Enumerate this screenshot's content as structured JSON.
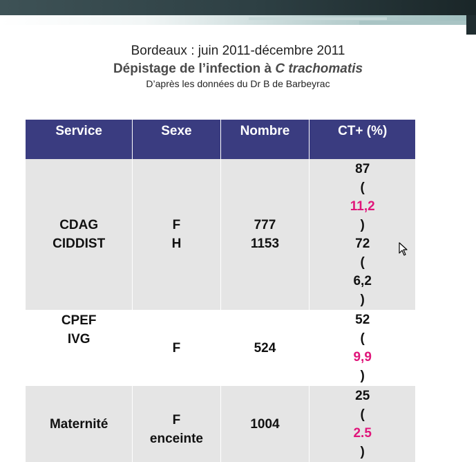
{
  "title": {
    "line1": "Bordeaux : juin 2011-décembre 2011",
    "line2_prefix": "Dépistage de l’infection à ",
    "line2_italic": "C trachomatis",
    "line3": "D’après les données du Dr B de Barbeyrac"
  },
  "table": {
    "headers": [
      "Service",
      "Sexe",
      "Nombre",
      "CT+ (%)"
    ],
    "rows": [
      {
        "service": [
          "CDAG",
          "CIDDIST"
        ],
        "sexe": [
          "F",
          "H"
        ],
        "nombre": [
          "777",
          "1153"
        ],
        "ct": [
          {
            "count": "87",
            "pct": "11,2",
            "highlight": true
          },
          {
            "count": "72",
            "pct": "6,2",
            "highlight": false
          }
        ]
      },
      {
        "service": [
          "CPEF",
          "IVG"
        ],
        "sexe": [
          "F"
        ],
        "nombre": [
          "524"
        ],
        "ct": [
          {
            "count": "52",
            "pct": "9,9",
            "highlight": true
          }
        ]
      },
      {
        "service": [
          "Maternité"
        ],
        "sexe": [
          "F",
          "enceinte"
        ],
        "nombre": [
          "1004"
        ],
        "ct": [
          {
            "count": "25",
            "pct": "2.5",
            "highlight": true
          }
        ]
      }
    ]
  },
  "colors": {
    "header_bg": "#3a3c80",
    "highlight": "#e0157a",
    "row_gray": "#e5e5e5"
  },
  "icons": {
    "cursor": "mouse-pointer-icon"
  }
}
